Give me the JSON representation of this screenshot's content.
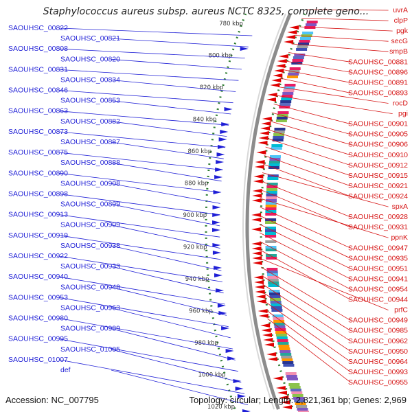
{
  "title": "Staphylococcus aureus subsp. aureus NCTC 8325, complete geno...",
  "footer": {
    "accession": "Accession: NC_007795",
    "stats": "Topology: circular; Length: 2,821,361 bp; Genes: 2,969"
  },
  "colors": {
    "left_labels": "#1f1fd6",
    "right_labels": "#d61414",
    "backbone": "#8c8c8c",
    "tick": "#2e7d32"
  },
  "ticks": [
    "780 kbp",
    "800 kbp",
    "820 kbp",
    "840 kbp",
    "860 kbp",
    "880 kbp",
    "900 kbp",
    "920 kbp",
    "940 kbp",
    "960 kbp",
    "980 kbp",
    "1000 kbp",
    "1020 kbp"
  ],
  "left_labels": [
    "SAOUHSC_00822",
    "SAOUHSC_00821",
    "SAOUHSC_00808",
    "SAOUHSC_00820",
    "SAOUHSC_00831",
    "SAOUHSC_00834",
    "SAOUHSC_00846",
    "SAOUHSC_00853",
    "SAOUHSC_00863",
    "SAOUHSC_00882",
    "SAOUHSC_00873",
    "SAOUHSC_00887",
    "SAOUHSC_00875",
    "SAOUHSC_00888",
    "SAOUHSC_00890",
    "SAOUHSC_00908",
    "SAOUHSC_00898",
    "SAOUHSC_00899",
    "SAOUHSC_00913",
    "SAOUHSC_00909",
    "SAOUHSC_00919",
    "SAOUHSC_00938",
    "SAOUHSC_00922",
    "SAOUHSC_00933",
    "SAOUHSC_00940",
    "SAOUHSC_00948",
    "SAOUHSC_00953",
    "SAOUHSC_00963",
    "SAOUHSC_00980",
    "SAOUHSC_00989",
    "SAOUHSC_00995",
    "SAOUHSC_01005",
    "SAOUHSC_01007",
    "def"
  ],
  "right_labels": [
    "uvrA",
    "clpP",
    "pgk",
    "secG",
    "smpB",
    "SAOUHSC_00881",
    "SAOUHSC_00896",
    "SAOUHSC_00891",
    "SAOUHSC_00893",
    "rocD",
    "pgi",
    "SAOUHSC_00901",
    "SAOUHSC_00905",
    "SAOUHSC_00906",
    "SAOUHSC_00910",
    "SAOUHSC_00912",
    "SAOUHSC_00915",
    "SAOUHSC_00921",
    "SAOUHSC_00924",
    "spxA",
    "SAOUHSC_00928",
    "SAOUHSC_00931",
    "ppnK",
    "SAOUHSC_00947",
    "SAOUHSC_00935",
    "SAOUHSC_00951",
    "SAOUHSC_00941",
    "SAOUHSC_00954",
    "SAOUHSC_00944",
    "prfC",
    "SAOUHSC_00949",
    "SAOUHSC_00985",
    "SAOUHSC_00962",
    "SAOUHSC_00950",
    "SAOUHSC_00964",
    "SAOUHSC_00993",
    "SAOUHSC_00955"
  ]
}
